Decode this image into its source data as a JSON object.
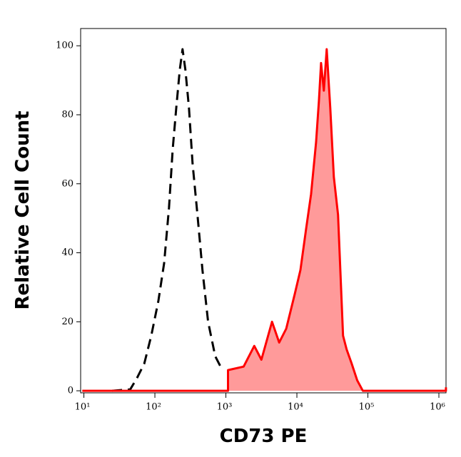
{
  "chart_data": {
    "type": "histogram-overlay",
    "x_label": "CD73 PE",
    "y_label": "Relative Cell Count",
    "xscale": "log",
    "xlim": [
      9,
      1260000
    ],
    "xticks": [
      {
        "value": 10,
        "label": "10¹"
      },
      {
        "value": 100,
        "label": "10²"
      },
      {
        "value": 1000,
        "label": "10³"
      },
      {
        "value": 10000,
        "label": "10⁴"
      },
      {
        "value": 100000,
        "label": "10⁵"
      },
      {
        "value": 1000000,
        "label": "10⁶"
      }
    ],
    "ylim": [
      -0.6,
      105
    ],
    "yticks": [
      0,
      20,
      40,
      60,
      80,
      100
    ],
    "series": [
      {
        "color": "#000000",
        "dashed": true,
        "x": [
          25,
          45,
          56,
          71,
          89,
          112,
          135,
          158,
          178,
          200,
          224,
          245,
          269,
          302,
          339,
          398,
          468,
          562,
          708,
          891
        ],
        "values": [
          0,
          0.4,
          3.7,
          7.9,
          16,
          26,
          37,
          53,
          70,
          82,
          93,
          99,
          93,
          82,
          66,
          51,
          35,
          20,
          10,
          6
        ]
      },
      {
        "color": "#ff0000",
        "fill": "#ff9a9a",
        "x": [
          9.5,
          1072,
          1072,
          1778,
          2512,
          3162,
          4467,
          5623,
          7079,
          9333,
          11220,
          13490,
          15850,
          18620,
          20420,
          21880,
          23990,
          26300,
          29510,
          33110,
          38020,
          44670,
          50120,
          58880,
          70790,
          84720,
          1258000,
          1258000
        ],
        "values": [
          0,
          0,
          6,
          7,
          13,
          9,
          20,
          14,
          18,
          28,
          35,
          47,
          57,
          72,
          84,
          95,
          87,
          99,
          82,
          62,
          51,
          16,
          12,
          8,
          3,
          0,
          0,
          1
        ]
      }
    ]
  }
}
